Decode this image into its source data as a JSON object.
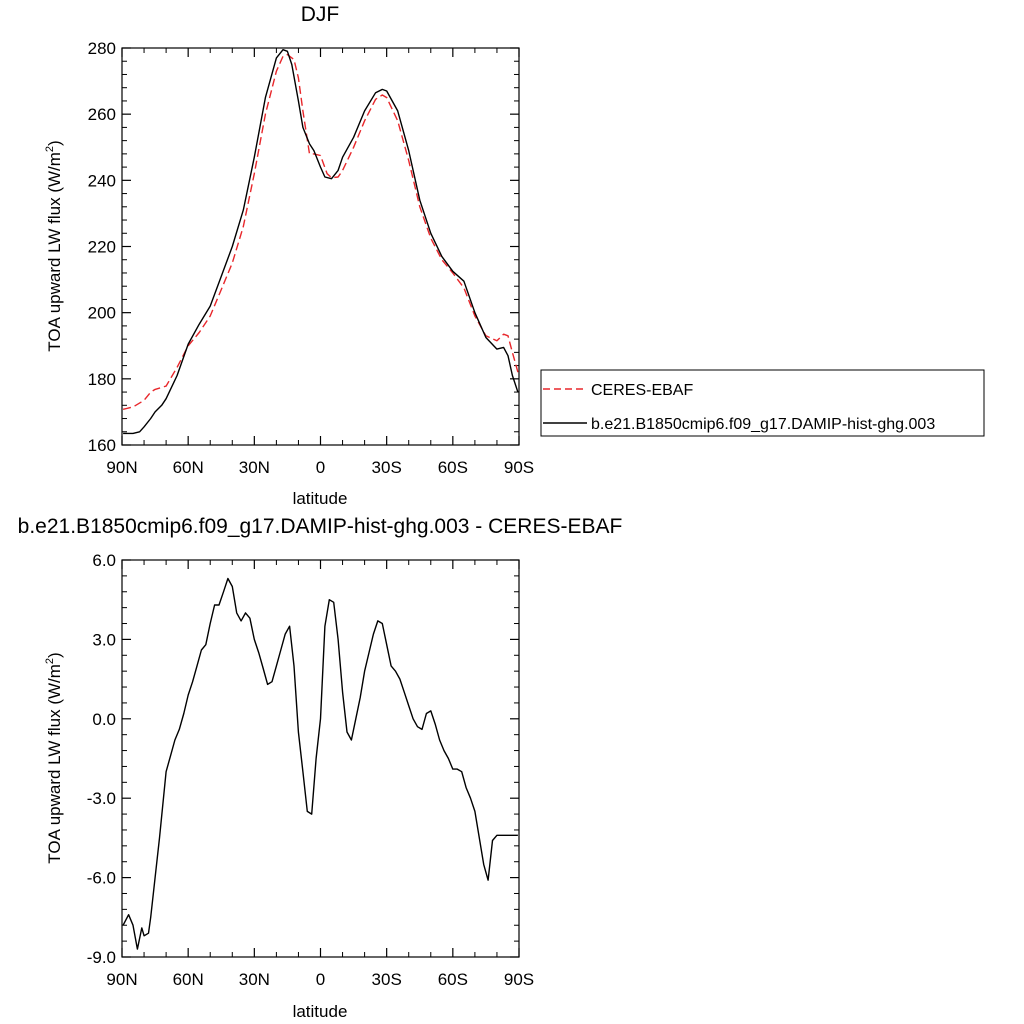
{
  "chart_data": [
    {
      "type": "line",
      "title": "DJF",
      "xlabel": "latitude",
      "ylabel": "TOA upward LW flux (W/m²)",
      "ylabel_parts": {
        "main": "TOA upward LW flux (W/m",
        "sup": "2",
        "tail": ")"
      },
      "xlim": [
        -90,
        90
      ],
      "ylim": [
        160,
        280
      ],
      "x_direction": "north-to-south (90N on left, 90S on right)",
      "xticks": [
        -90,
        -60,
        -30,
        0,
        30,
        60,
        90
      ],
      "xticklabels": [
        "90N",
        "60N",
        "30N",
        "0",
        "30S",
        "60S",
        "90S"
      ],
      "yticks": [
        160,
        180,
        200,
        220,
        240,
        260,
        280
      ],
      "yticklabels": [
        "160",
        "180",
        "200",
        "220",
        "240",
        "260",
        "280"
      ],
      "grid": false,
      "legend": {
        "placement": "right",
        "entries": [
          {
            "label": "CERES-EBAF",
            "style": "dashed",
            "color": "#e8272b"
          },
          {
            "label": "b.e21.B1850cmip6.f09_g17.DAMIP-hist-ghg.003",
            "style": "solid",
            "color": "#000000"
          }
        ]
      },
      "series": [
        {
          "name": "CERES-EBAF",
          "style": "dashed",
          "color": "#e8272b",
          "x": [
            -89.5,
            -85,
            -80,
            -77,
            -75,
            -70,
            -65,
            -60,
            -55,
            -50,
            -45,
            -40,
            -35,
            -30,
            -25,
            -20,
            -17,
            -15,
            -12,
            -10,
            -8,
            -5,
            -3,
            0,
            3,
            5,
            8,
            10,
            15,
            20,
            25,
            28,
            30,
            35,
            40,
            45,
            50,
            55,
            60,
            65,
            70,
            75,
            80,
            83,
            85,
            87,
            89.5
          ],
          "y": [
            170.8,
            171.5,
            173.5,
            176.0,
            176.8,
            177.8,
            183.5,
            190.0,
            194.0,
            199.0,
            207.0,
            215.0,
            226.0,
            242.0,
            260.0,
            273.0,
            277.5,
            278.0,
            276.5,
            271.0,
            261.0,
            248.0,
            248.0,
            247.5,
            242.0,
            240.8,
            241.0,
            243.0,
            250.0,
            258.0,
            264.5,
            265.8,
            265.0,
            258.0,
            246.0,
            232.0,
            222.5,
            216.0,
            212.0,
            207.5,
            199.0,
            193.0,
            191.5,
            193.5,
            193.0,
            188.0,
            182.0
          ]
        },
        {
          "name": "b.e21.B1850cmip6.f09_g17.DAMIP-hist-ghg.003",
          "style": "solid",
          "color": "#000000",
          "x": [
            -89.5,
            -85,
            -82,
            -80,
            -77,
            -75,
            -72,
            -70,
            -65,
            -60,
            -55,
            -50,
            -45,
            -40,
            -35,
            -30,
            -25,
            -20,
            -17,
            -15,
            -13,
            -10,
            -8,
            -5,
            -3,
            0,
            2,
            5,
            8,
            10,
            15,
            20,
            25,
            28,
            30,
            35,
            40,
            45,
            50,
            55,
            60,
            65,
            70,
            75,
            80,
            83,
            85,
            87,
            89.5
          ],
          "y": [
            163.5,
            163.5,
            164.0,
            165.5,
            168.0,
            170.0,
            172.0,
            174.0,
            181.0,
            190.5,
            196.5,
            202.0,
            211.0,
            220.0,
            231.0,
            247.0,
            265.0,
            277.0,
            279.5,
            279.0,
            275.0,
            264.0,
            256.0,
            251.0,
            249.0,
            244.0,
            241.0,
            240.5,
            243.0,
            247.0,
            253.0,
            261.0,
            266.5,
            267.5,
            267.0,
            261.0,
            249.0,
            234.0,
            224.0,
            217.0,
            212.5,
            209.5,
            200.0,
            192.5,
            189.0,
            189.5,
            187.0,
            181.0,
            176.0
          ]
        }
      ]
    },
    {
      "type": "line",
      "title": "b.e21.B1850cmip6.f09_g17.DAMIP-hist-ghg.003 - CERES-EBAF",
      "xlabel": "latitude",
      "ylabel": "TOA upward LW flux (W/m²)",
      "ylabel_parts": {
        "main": "TOA upward LW flux (W/m",
        "sup": "2",
        "tail": ")"
      },
      "xlim": [
        -90,
        90
      ],
      "ylim": [
        -9,
        6
      ],
      "x_direction": "north-to-south (90N on left, 90S on right)",
      "xticks": [
        -90,
        -60,
        -30,
        0,
        30,
        60,
        90
      ],
      "xticklabels": [
        "90N",
        "60N",
        "30N",
        "0",
        "30S",
        "60S",
        "90S"
      ],
      "yticks": [
        -9,
        -6,
        -3,
        0,
        3,
        6
      ],
      "yticklabels": [
        "-9.0",
        "-6.0",
        "-3.0",
        "0.0",
        "3.0",
        "6.0"
      ],
      "grid": false,
      "series": [
        {
          "color": "#000000",
          "style": "solid",
          "x": [
            -89.5,
            -87,
            -85,
            -83,
            -81,
            -80,
            -78,
            -77,
            -75,
            -73,
            -70,
            -68,
            -66,
            -64,
            -62,
            -60,
            -58,
            -56,
            -54,
            -52,
            -50,
            -48,
            -46,
            -44,
            -42,
            -40,
            -38,
            -36,
            -34,
            -32,
            -30,
            -28,
            -26,
            -24,
            -22,
            -20,
            -18,
            -16,
            -14,
            -12,
            -10,
            -8,
            -6,
            -4,
            -2,
            0,
            2,
            4,
            6,
            8,
            10,
            12,
            14,
            16,
            18,
            20,
            22,
            24,
            26,
            28,
            30,
            32,
            34,
            36,
            38,
            40,
            42,
            44,
            46,
            48,
            50,
            52,
            54,
            56,
            58,
            60,
            62,
            64,
            66,
            68,
            70,
            72,
            74,
            76,
            78,
            80,
            82,
            84,
            86,
            88,
            89.5
          ],
          "y": [
            -7.8,
            -7.4,
            -7.8,
            -8.7,
            -7.9,
            -8.2,
            -8.1,
            -7.5,
            -6.0,
            -4.5,
            -2.0,
            -1.4,
            -0.8,
            -0.4,
            0.2,
            0.9,
            1.4,
            2.0,
            2.6,
            2.8,
            3.6,
            4.3,
            4.3,
            4.8,
            5.3,
            5.0,
            4.0,
            3.7,
            4.0,
            3.8,
            3.0,
            2.5,
            1.9,
            1.3,
            1.4,
            2.0,
            2.6,
            3.2,
            3.5,
            2.0,
            -0.5,
            -2.0,
            -3.5,
            -3.6,
            -1.5,
            0.0,
            3.5,
            4.5,
            4.4,
            3.0,
            1.0,
            -0.5,
            -0.8,
            0.0,
            0.8,
            1.8,
            2.5,
            3.2,
            3.7,
            3.6,
            2.8,
            2.0,
            1.8,
            1.5,
            1.0,
            0.5,
            0.0,
            -0.3,
            -0.4,
            0.2,
            0.3,
            -0.2,
            -0.8,
            -1.2,
            -1.5,
            -1.9,
            -1.9,
            -2.0,
            -2.6,
            -3.0,
            -3.5,
            -4.5,
            -5.5,
            -6.1,
            -4.6,
            -4.4,
            -4.4,
            -4.4,
            -4.4,
            -4.4,
            -4.4
          ]
        }
      ]
    }
  ]
}
